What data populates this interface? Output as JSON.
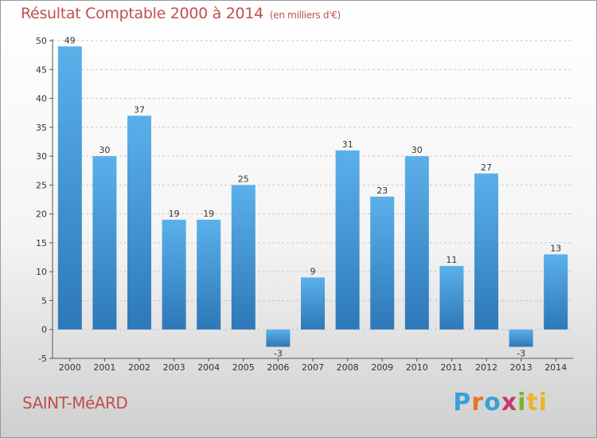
{
  "header": {
    "title": "Résultat Comptable 2000 à 2014",
    "subtitle": "(en milliers d'€)"
  },
  "footer": {
    "place": "SAINT-MéARD",
    "brand": [
      "P",
      "r",
      "o",
      "x",
      "i",
      "ti"
    ]
  },
  "colors": {
    "title": "#c0504d",
    "bar_top": "#5bb0ea",
    "bar_bottom": "#2d78b8",
    "grid": "#c8c8c8"
  },
  "chart_data": {
    "type": "bar",
    "title": "Résultat Comptable 2000 à 2014",
    "subtitle": "(en milliers d'€)",
    "categories": [
      "2000",
      "2001",
      "2002",
      "2003",
      "2004",
      "2005",
      "2006",
      "2007",
      "2008",
      "2009",
      "2010",
      "2011",
      "2012",
      "2013",
      "2014"
    ],
    "values": [
      49,
      30,
      37,
      19,
      19,
      25,
      -3,
      9,
      31,
      23,
      30,
      11,
      27,
      -3,
      13
    ],
    "ylim": [
      -5,
      50
    ],
    "yticks": [
      -5,
      0,
      5,
      10,
      15,
      20,
      25,
      30,
      35,
      40,
      45,
      50
    ],
    "xlabel": "",
    "ylabel": "",
    "grid": "horizontal dashed"
  }
}
